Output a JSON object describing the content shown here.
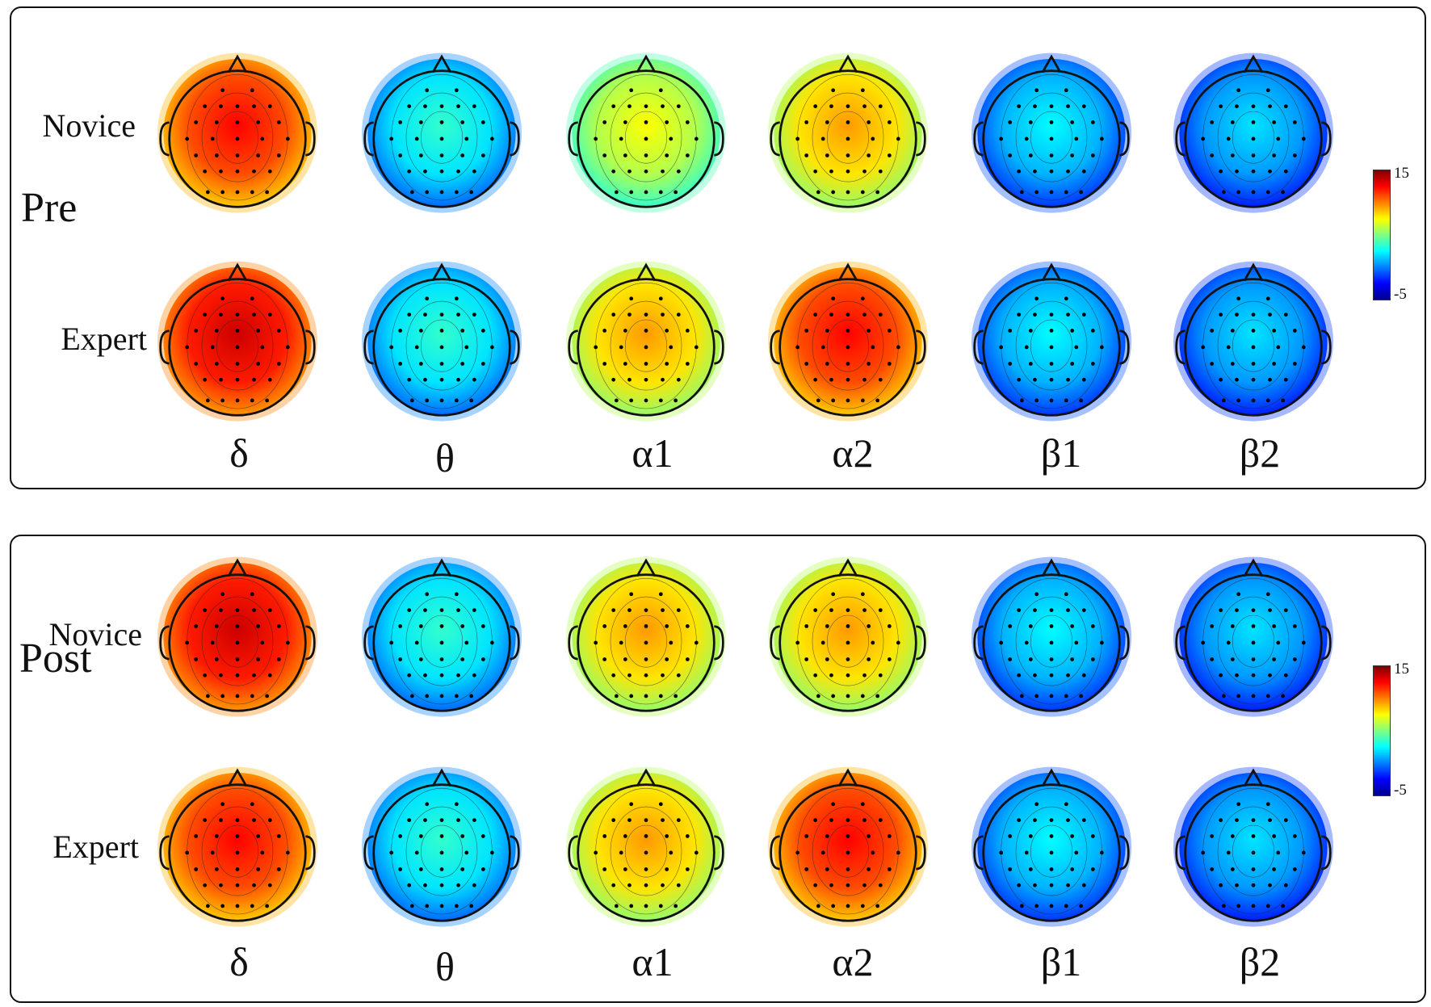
{
  "conditions": [
    {
      "label": "Pre",
      "colorbar": {
        "max": "15",
        "min": "-5"
      }
    },
    {
      "label": "Post",
      "colorbar": {
        "max": "15",
        "min": "-5"
      }
    }
  ],
  "groups": [
    "Novice",
    "Expert"
  ],
  "bands": [
    "δ",
    "θ",
    "α1",
    "α2",
    "β1",
    "β2"
  ],
  "chart_data": {
    "type": "heatmap",
    "description_type": "topographic scalp maps",
    "colormap": "jet",
    "color_range": [
      -5,
      15
    ],
    "conditions": [
      "Pre",
      "Post"
    ],
    "groups": [
      "Novice",
      "Expert"
    ],
    "bands": [
      "δ",
      "θ",
      "α1",
      "α2",
      "β1",
      "β2"
    ],
    "approx_levels": {
      "Pre": {
        "Novice": {
          "δ": 11,
          "θ": 2,
          "α1": 6,
          "α2": 8,
          "β1": 1,
          "β2": 0.5
        },
        "Expert": {
          "δ": 12,
          "θ": 2,
          "α1": 8,
          "α2": 11,
          "β1": 1,
          "β2": 0.5
        }
      },
      "Post": {
        "Novice": {
          "δ": 12,
          "θ": 2,
          "α1": 8,
          "α2": 8,
          "β1": 1,
          "β2": 0.5
        },
        "Expert": {
          "δ": 11,
          "θ": 2,
          "α1": 8,
          "α2": 11,
          "β1": 1,
          "β2": 0.5
        }
      }
    }
  }
}
